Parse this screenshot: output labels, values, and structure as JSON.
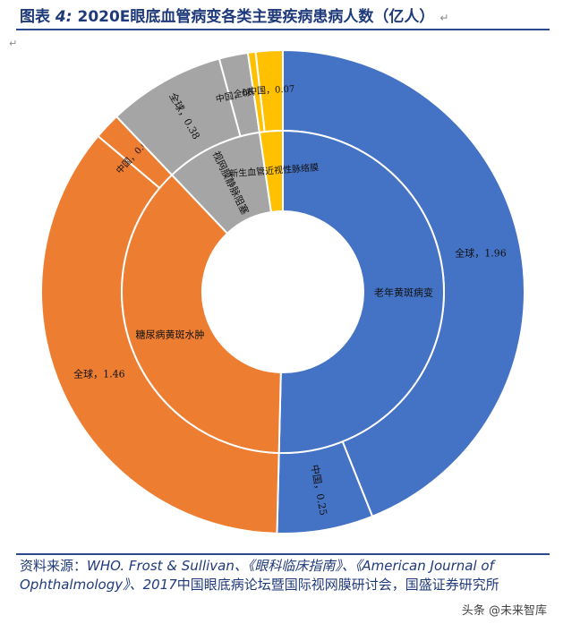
{
  "title": {
    "prefix": "图表",
    "number": "4:",
    "text": "2020E眼底血管病变各类主要疾病患病人数（亿人）",
    "tail_mark": "↵"
  },
  "chart_data": {
    "type": "pie",
    "variant": "nested-donut",
    "title": "2020E眼底血管病变各类主要疾病患病人数（亿人）",
    "inner_ring": [
      {
        "label": "老年黄斑病变",
        "value": 1.96,
        "color": "#4472C4"
      },
      {
        "label": "糖尿病黄斑水肿",
        "value": 1.46,
        "color": "#ED7D31"
      },
      {
        "label": "视网膜静脉阻塞",
        "value": 0.38,
        "color": "#A5A5A5"
      },
      {
        "label": "新生血管近视性脉络膜",
        "value": 0.09,
        "color": "#FFC000"
      }
    ],
    "outer_ring": [
      {
        "label": "全球，1.96",
        "value": 1.71,
        "group": "老年黄斑病变",
        "color": "#4472C4"
      },
      {
        "label": "中国，0.25",
        "value": 0.25,
        "group": "老年黄斑病变",
        "color": "#4472C4"
      },
      {
        "label": "全球，1.46",
        "value": 1.391,
        "group": "糖尿病黄斑水肿",
        "color": "#ED7D31"
      },
      {
        "label": "中国，0.069",
        "value": 0.069,
        "group": "糖尿病黄斑水肿",
        "color": "#ED7D31"
      },
      {
        "label": "全球，0.38",
        "value": 0.305,
        "group": "视网膜静脉阻塞",
        "color": "#A5A5A5"
      },
      {
        "label": "中国，0.075",
        "value": 0.075,
        "group": "视网膜静脉阻塞",
        "color": "#A5A5A5"
      },
      {
        "label": "全球，0.09",
        "value": 0.02,
        "group": "新生血管近视性脉络膜",
        "color": "#FFC000"
      },
      {
        "label": "中国，0.07",
        "value": 0.07,
        "group": "新生血管近视性脉络膜",
        "color": "#FFC000"
      }
    ],
    "legend": "none"
  },
  "source": {
    "prefix": "资料来源：",
    "refs": "WHO. Frost & Sullivan、《眼科临床指南》、《American Journal of Ophthalmology》、2017",
    "rest": "中国眼底病论坛暨国际视网膜研讨会，国盛证券研究所"
  },
  "watermark": "头条 @未来智库"
}
